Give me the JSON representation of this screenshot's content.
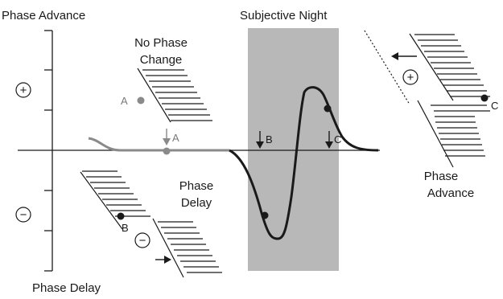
{
  "labels": {
    "phase_advance_top": "Phase Advance",
    "subjective_night": "Subjective Night",
    "no_phase_change_1": "No Phase",
    "no_phase_change_2": "Change",
    "phase_delay_mid_1": "Phase",
    "phase_delay_mid_2": "Delay",
    "phase_advance_right_1": "Phase",
    "phase_advance_right_2": "Advance",
    "phase_delay_bottom": "Phase Delay"
  },
  "points": {
    "a_upper": "A",
    "a_arrow": "A",
    "b_arrow": "B",
    "b_lower": "B",
    "c_arrow": "C",
    "c_right": "C"
  },
  "signs": {
    "plus_left": "+",
    "minus_left": "−",
    "minus_delay_plot": "−",
    "plus_advance_plot": "+"
  },
  "colors": {
    "night_band": "#b8b8b8",
    "curve": "#1a1a1a",
    "curve_grey": "#8a8a8a",
    "point_grey": "#8a8a8a",
    "point_black": "#1a1a1a"
  }
}
